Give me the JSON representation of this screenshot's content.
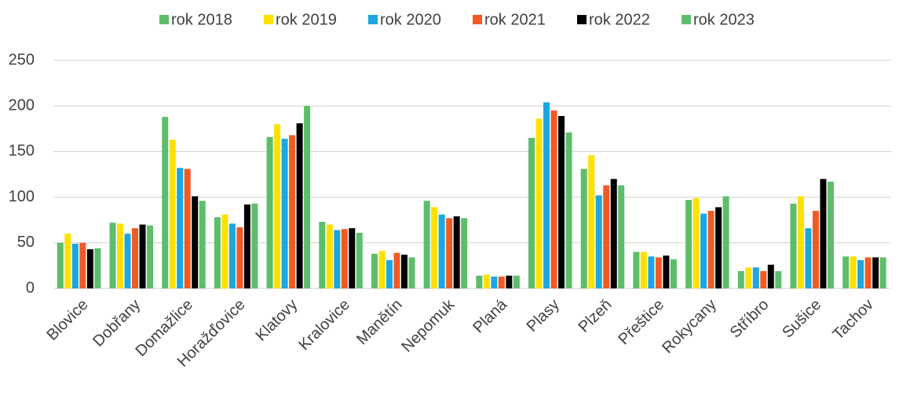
{
  "chart_data": {
    "type": "bar",
    "categories": [
      "Blovice",
      "Dobřany",
      "Domažlice",
      "Horažďovice",
      "Klatovy",
      "Kralovice",
      "Manětín",
      "Nepomuk",
      "Planá",
      "Plasy",
      "Plzeň",
      "Přeštice",
      "Rokycany",
      "Stříbro",
      "Sušice",
      "Tachov"
    ],
    "series": [
      {
        "name": "rok 2018",
        "color": "#5dbd6b",
        "values": [
          50,
          72,
          188,
          78,
          166,
          73,
          38,
          96,
          14,
          165,
          131,
          40,
          97,
          19,
          93,
          35
        ]
      },
      {
        "name": "rok 2019",
        "color": "#ffe000",
        "values": [
          60,
          71,
          163,
          81,
          180,
          70,
          41,
          89,
          15,
          186,
          146,
          40,
          99,
          23,
          101,
          35
        ]
      },
      {
        "name": "rok 2020",
        "color": "#1ca6e2",
        "values": [
          49,
          60,
          132,
          71,
          164,
          64,
          31,
          81,
          13,
          204,
          102,
          35,
          82,
          23,
          66,
          31
        ]
      },
      {
        "name": "rok 2021",
        "color": "#f15a24",
        "values": [
          50,
          66,
          131,
          67,
          168,
          65,
          39,
          77,
          13,
          195,
          113,
          34,
          85,
          19,
          85,
          34
        ]
      },
      {
        "name": "rok 2022",
        "color": "#000000",
        "values": [
          43,
          70,
          101,
          92,
          181,
          66,
          37,
          79,
          14,
          189,
          120,
          36,
          89,
          26,
          120,
          34
        ]
      },
      {
        "name": "rok 2023",
        "color": "#5dbd6b",
        "values": [
          44,
          69,
          96,
          93,
          200,
          61,
          34,
          77,
          14,
          171,
          113,
          32,
          101,
          19,
          117,
          34
        ]
      }
    ],
    "ylim": [
      0,
      250
    ],
    "yticks": [
      0,
      50,
      100,
      150,
      200,
      250
    ],
    "grid": true,
    "legend": "top"
  }
}
